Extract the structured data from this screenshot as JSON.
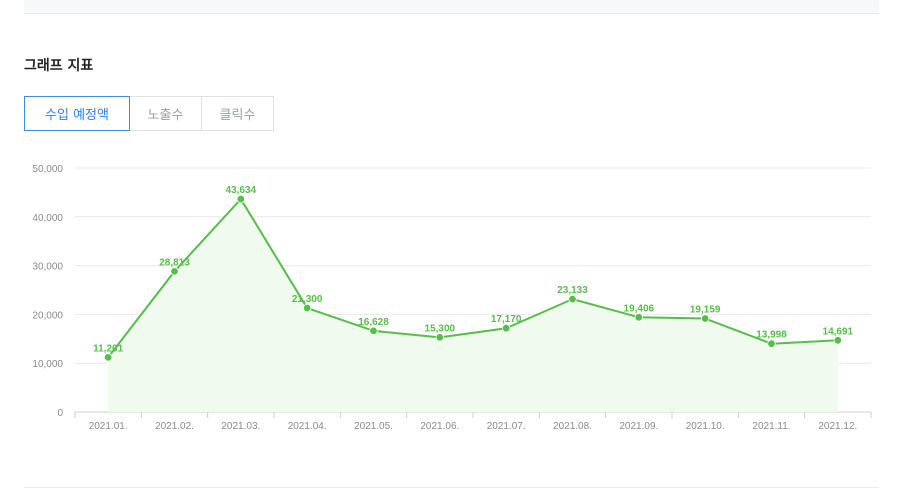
{
  "section": {
    "title": "그래프 지표"
  },
  "tabs": [
    {
      "label": "수입 예정액",
      "active": true
    },
    {
      "label": "노출수",
      "active": false
    },
    {
      "label": "클릭수",
      "active": false
    }
  ],
  "colors": {
    "line": "#57bd4b",
    "area": "#f0faef",
    "active_tab": "#2f80ed",
    "grid": "#e9e9e9",
    "axis_text": "#8a8a8a"
  },
  "chart_data": {
    "type": "line",
    "categories": [
      "2021.01.",
      "2021.02.",
      "2021.03.",
      "2021.04.",
      "2021.05.",
      "2021.06.",
      "2021.07.",
      "2021.08.",
      "2021.09.",
      "2021.10.",
      "2021.11.",
      "2021.12."
    ],
    "values": [
      11201,
      28813,
      43634,
      21300,
      16628,
      15300,
      17170,
      23133,
      19406,
      19159,
      13998,
      14691
    ],
    "value_labels": [
      "11,201",
      "28,813",
      "43,634",
      "21,300",
      "16,628",
      "15,300",
      "17,170",
      "23,133",
      "19,406",
      "19,159",
      "13,998",
      "14,691"
    ],
    "y_ticks": [
      "0",
      "10,000",
      "20,000",
      "30,000",
      "40,000",
      "50,000"
    ],
    "ylim": [
      0,
      50000
    ],
    "grid": true,
    "area_fill": true
  }
}
